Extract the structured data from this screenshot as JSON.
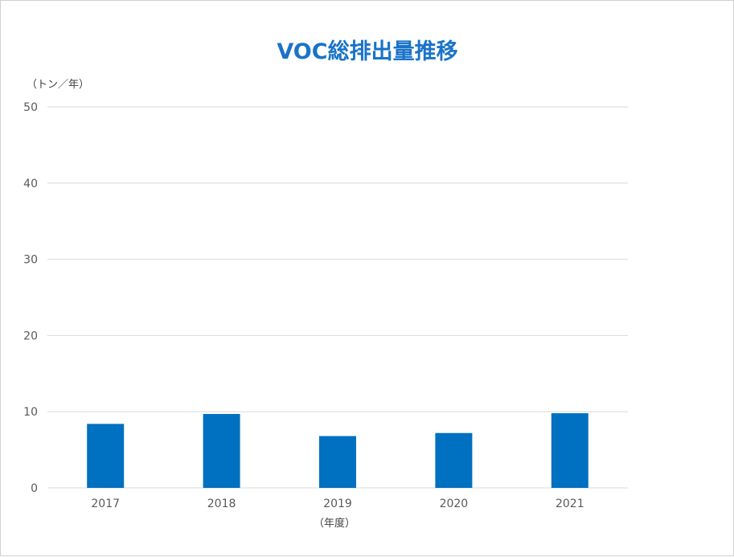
{
  "chart_data": {
    "type": "bar",
    "title": "VOC総排出量推移",
    "ylabel": "（トン／年）",
    "xlabel": "（年度）",
    "categories": [
      "2017",
      "2018",
      "2019",
      "2020",
      "2021"
    ],
    "values": [
      8.4,
      9.7,
      6.8,
      7.2,
      9.8
    ],
    "ylim": [
      0,
      50
    ],
    "yticks": [
      0,
      10,
      20,
      30,
      40,
      50
    ],
    "grid": true,
    "legend": "none",
    "bar_color": "#0070c0"
  }
}
